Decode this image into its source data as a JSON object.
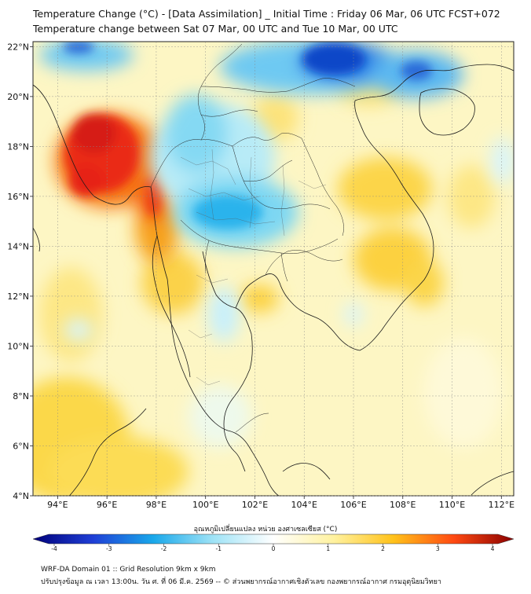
{
  "header": {
    "title_line1": "Temperature Change (°C) - [Data Assimilation] _ Initial Time : Friday 06 Mar, 06 UTC FCST+072",
    "title_line2": "Temperature change between Sat 07 Mar, 00 UTC and Tue 10 Mar, 00 UTC"
  },
  "map": {
    "lon_labels": [
      "94°E",
      "96°E",
      "98°E",
      "100°E",
      "102°E",
      "104°E",
      "106°E",
      "108°E",
      "110°E",
      "112°E"
    ],
    "lat_labels": [
      "22°N",
      "20°N",
      "18°N",
      "16°N",
      "14°N",
      "12°N",
      "10°N",
      "8°N",
      "6°N",
      "4°N"
    ],
    "lon_values": [
      94,
      96,
      98,
      100,
      102,
      104,
      106,
      108,
      110,
      112
    ],
    "lat_values": [
      22,
      20,
      18,
      16,
      14,
      12,
      10,
      8,
      6,
      4
    ],
    "extent": {
      "lon_min": 93.0,
      "lon_max": 112.5,
      "lat_min": 4.0,
      "lat_max": 22.2
    }
  },
  "colorbar": {
    "label": "อุณหภูมิเปลี่ยนแปลง หน่วย องศาเซลเซียส (°C)",
    "ticks": [
      "-4",
      "-3",
      "-2",
      "-1",
      "0",
      "1",
      "2",
      "3",
      "4"
    ],
    "range": [
      -4,
      4
    ],
    "colors": [
      "#00007a",
      "#1f3fd6",
      "#19a8ea",
      "#9fe3f6",
      "#ffffff",
      "#fff2a0",
      "#ffc21a",
      "#ff4a12",
      "#8a0000"
    ]
  },
  "footer": {
    "line1": "WRF-DA Domain 01 :: Grid Resolution 9km x 9km",
    "line2": "ปรับปรุงข้อมูล ณ เวลา 13:00น. วัน ศ. ที่ 06 มี.ค. 2569 -- © ส่วนพยากรณ์อากาศเชิงตัวเลข กองพยากรณ์อากาศ กรมอุตุนิยมวิทยา"
  }
}
